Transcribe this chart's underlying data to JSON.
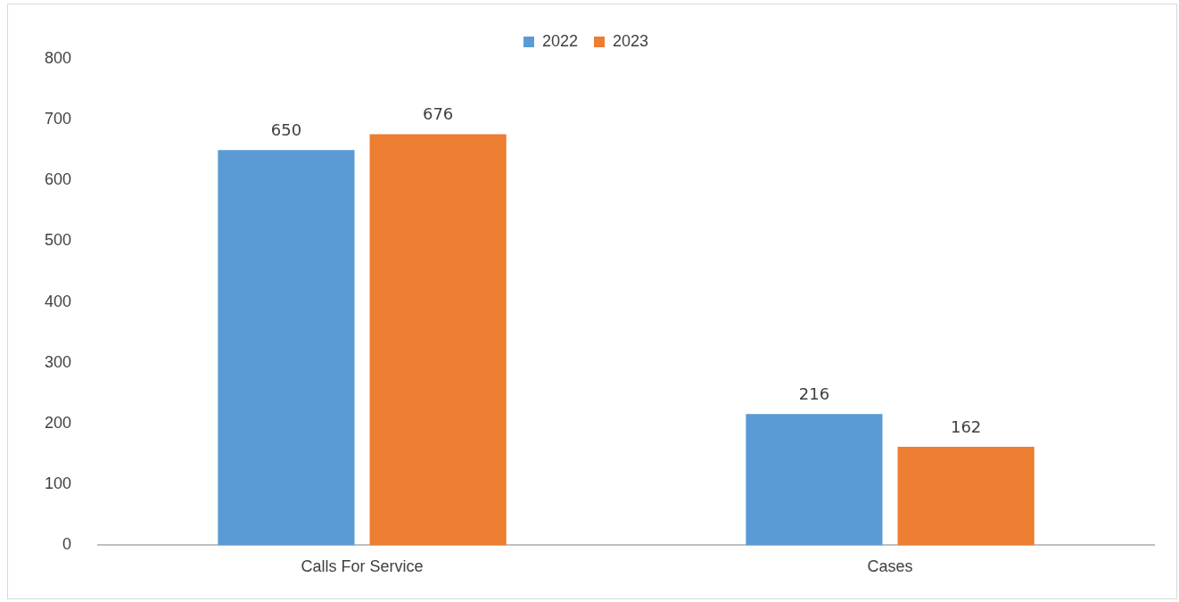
{
  "chart_data": {
    "type": "bar",
    "categories": [
      "Calls For Service",
      "Cases"
    ],
    "series": [
      {
        "name": "2022",
        "color": "#5b9bd5",
        "values": [
          650,
          216
        ]
      },
      {
        "name": "2023",
        "color": "#ed7d31",
        "values": [
          676,
          162
        ]
      }
    ],
    "ylim": [
      0,
      800
    ],
    "yticks": [
      0,
      100,
      200,
      300,
      400,
      500,
      600,
      700,
      800
    ],
    "grid": false,
    "legend": "top",
    "data_labels": true
  }
}
